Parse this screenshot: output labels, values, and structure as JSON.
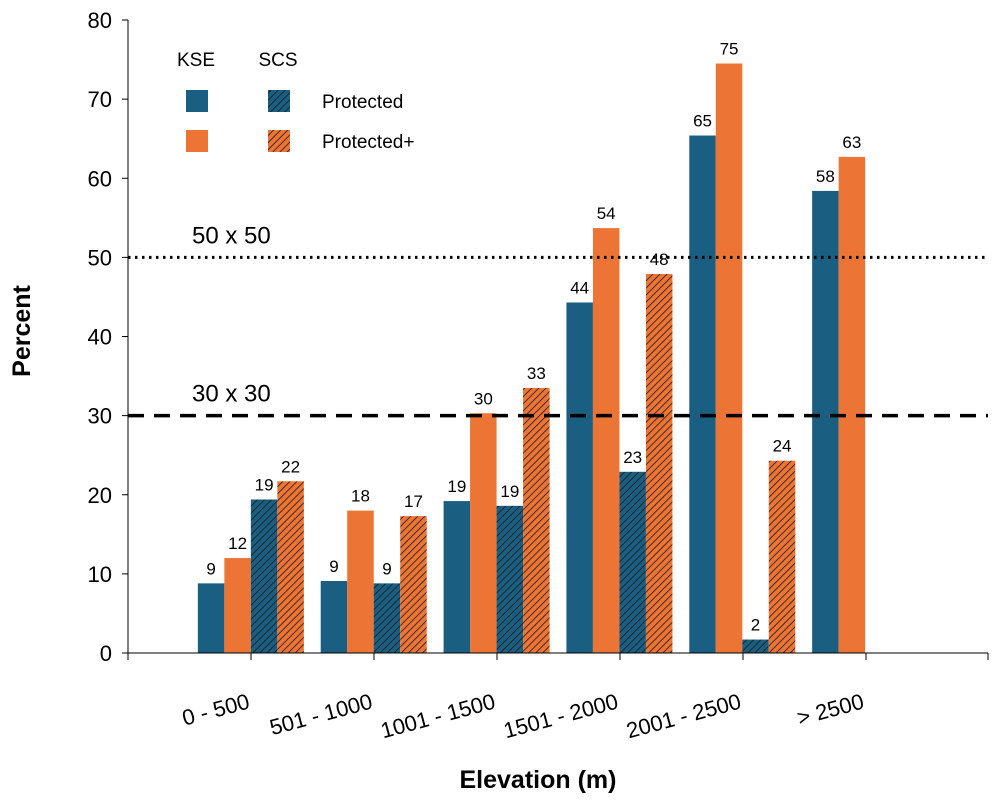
{
  "colors": {
    "kse_protected": "#1a5e82",
    "kse_protected_plus": "#ec7434",
    "scs_protected": "#1a5e82",
    "scs_protected_plus": "#ec7434",
    "hatch_line": "#1a1a1a",
    "axis": "#000000"
  },
  "legend": {
    "col_kse": "KSE",
    "col_scs": "SCS",
    "row_protected": "Protected",
    "row_protected_plus": "Protected+",
    "placement": "top-left"
  },
  "chart_data": {
    "type": "bar",
    "title": "",
    "xlabel": "Elevation (m)",
    "ylabel": "Percent",
    "ylim": [
      0,
      80
    ],
    "yticks": [
      0,
      10,
      20,
      30,
      40,
      50,
      60,
      70,
      80
    ],
    "grid": false,
    "categories": [
      "0 - 500",
      "501 - 1000",
      "1001 - 1500",
      "1501 - 2000",
      "2001 - 2500",
      "> 2500"
    ],
    "series": [
      {
        "name": "KSE Protected",
        "key": "kse_protected",
        "hatched": false,
        "values": [
          8.8,
          9.1,
          19.2,
          44.3,
          65.4,
          58.4
        ],
        "labels": [
          "9",
          "9",
          "19",
          "44",
          "65",
          "58"
        ]
      },
      {
        "name": "KSE Protected+",
        "key": "kse_protected_plus",
        "hatched": false,
        "values": [
          12.0,
          18.0,
          30.3,
          53.7,
          74.5,
          62.7
        ],
        "labels": [
          "12",
          "18",
          "30",
          "54",
          "75",
          "63"
        ]
      },
      {
        "name": "SCS Protected",
        "key": "scs_protected",
        "hatched": true,
        "values": [
          19.4,
          8.8,
          18.6,
          22.9,
          1.7,
          null
        ],
        "labels": [
          "19",
          "9",
          "19",
          "23",
          "2",
          ""
        ]
      },
      {
        "name": "SCS Protected+",
        "key": "scs_protected_plus",
        "hatched": true,
        "values": [
          21.7,
          17.3,
          33.5,
          47.9,
          24.3,
          null
        ],
        "labels": [
          "22",
          "17",
          "33",
          "48",
          "24",
          ""
        ]
      }
    ],
    "reference_lines": [
      {
        "value": 50,
        "label": "50 x 50",
        "style": "dotted"
      },
      {
        "value": 30,
        "label": "30 x 30",
        "style": "dashed"
      }
    ]
  }
}
